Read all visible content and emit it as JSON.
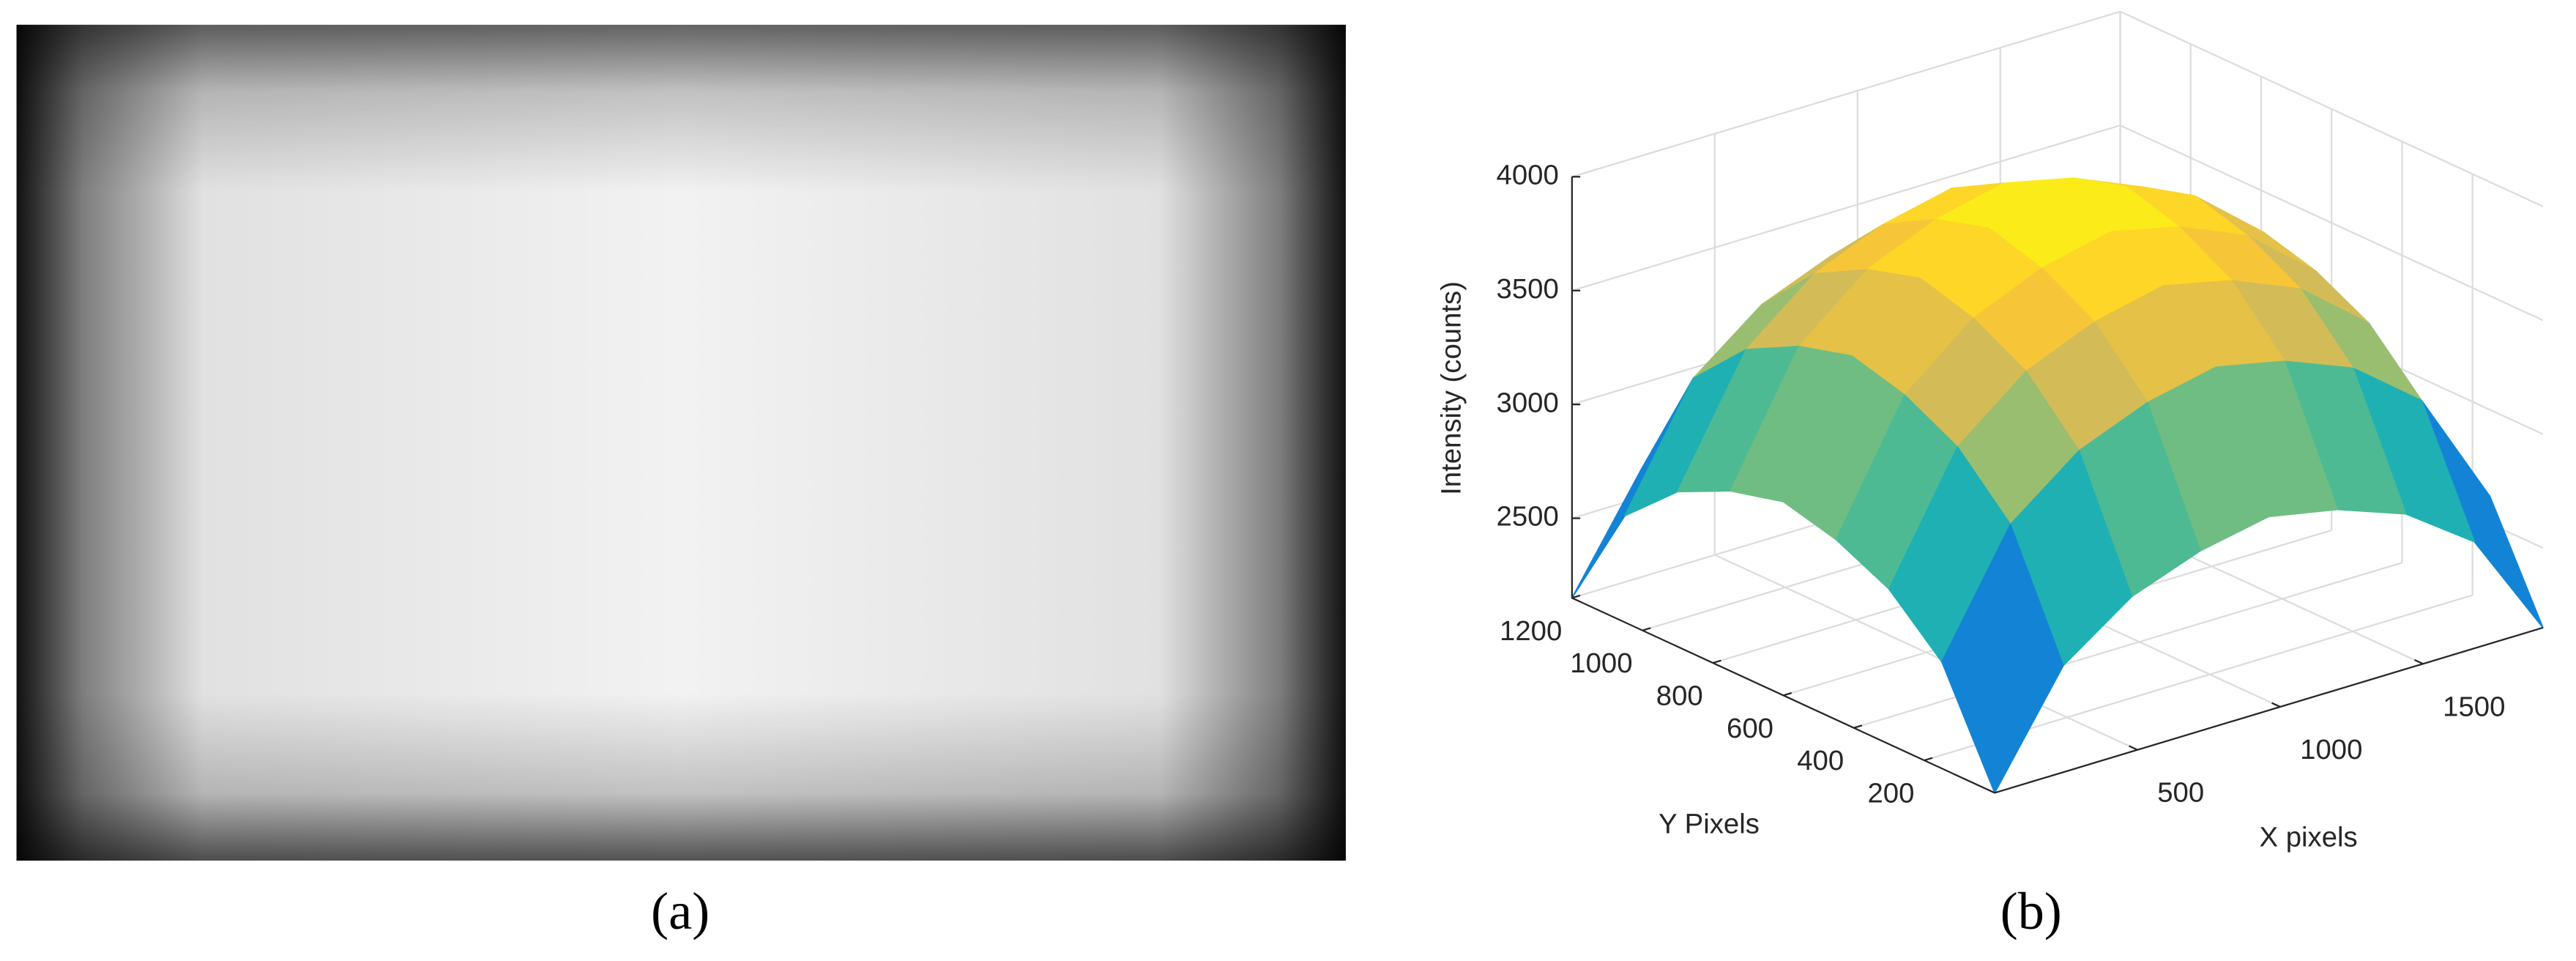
{
  "chart_data": [
    {
      "type": "image",
      "label": "(a)"
    },
    {
      "type": "surface",
      "label": "(b)",
      "xlabel": "X pixels",
      "ylabel": "Y Pixels",
      "zlabel": "Intensity (counts)",
      "x": [
        0,
        240,
        480,
        720,
        960,
        1200,
        1440,
        1680,
        1920
      ],
      "y": [
        0,
        150,
        300,
        450,
        600,
        750,
        900,
        1050,
        1200
      ],
      "z": [
        [
          2150,
          2618,
          2831,
          2941,
          3001,
          2941,
          2831,
          2618,
          2150
        ],
        [
          2618,
          3131,
          3364,
          3485,
          3550,
          3485,
          3364,
          3131,
          2618
        ],
        [
          2831,
          3364,
          3606,
          3732,
          3800,
          3732,
          3606,
          3364,
          2831
        ],
        [
          2941,
          3485,
          3732,
          3861,
          3930,
          3861,
          3732,
          3485,
          2941
        ],
        [
          3001,
          3550,
          3800,
          3930,
          4000,
          3930,
          3800,
          3550,
          3001
        ],
        [
          2941,
          3485,
          3732,
          3861,
          3930,
          3861,
          3732,
          3485,
          2941
        ],
        [
          2831,
          3364,
          3606,
          3732,
          3800,
          3732,
          3606,
          3364,
          2831
        ],
        [
          2618,
          3131,
          3364,
          3485,
          3550,
          3485,
          3364,
          3131,
          2618
        ],
        [
          2150,
          2618,
          2831,
          2941,
          3001,
          2941,
          2831,
          2618,
          2150
        ]
      ],
      "xlim": [
        0,
        1920
      ],
      "ylim": [
        0,
        1200
      ],
      "zlim": [
        2150,
        4000
      ],
      "xticks": [
        500,
        1000,
        1500
      ],
      "yticks": [
        200,
        400,
        600,
        800,
        1000,
        1200
      ],
      "zticks": [
        2500,
        3000,
        3500,
        4000
      ],
      "grid": true,
      "colormap": [
        "#352a87",
        "#0f5cdd",
        "#1481d6",
        "#06a4ca",
        "#2eb7a4",
        "#87bf77",
        "#d1bb59",
        "#fec832",
        "#f9fb0e"
      ]
    }
  ]
}
